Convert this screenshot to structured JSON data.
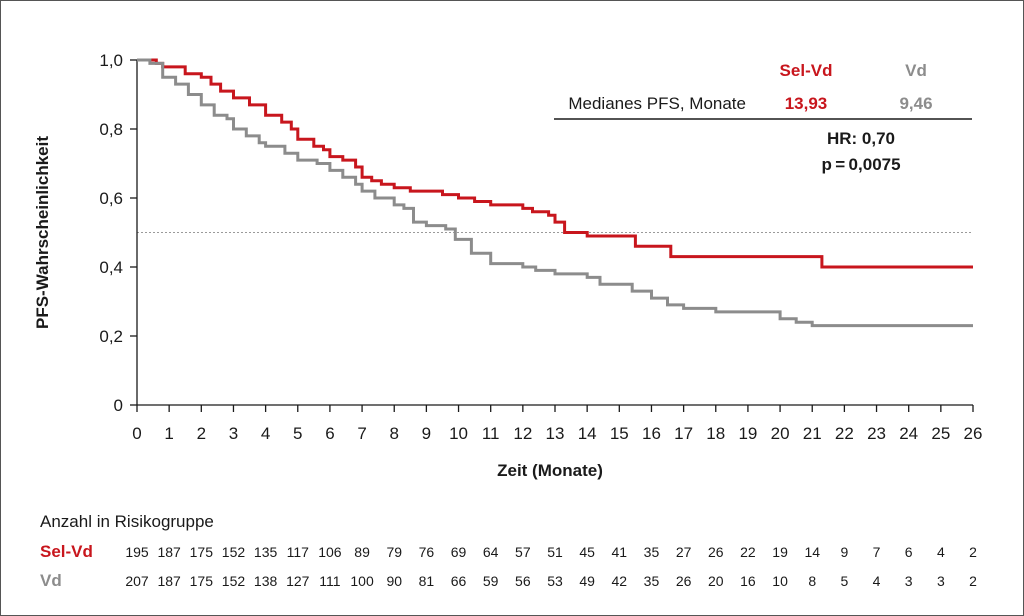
{
  "chart_data": {
    "type": "line",
    "title": "",
    "xlabel": "Zeit (Monate)",
    "ylabel": "PFS-Wahrscheinlichkeit",
    "xlim": [
      0,
      26
    ],
    "ylim": [
      0,
      1
    ],
    "x_ticks": [
      "0",
      "1",
      "2",
      "3",
      "4",
      "5",
      "6",
      "7",
      "8",
      "9",
      "10",
      "11",
      "12",
      "13",
      "14",
      "15",
      "16",
      "17",
      "18",
      "19",
      "20",
      "21",
      "22",
      "23",
      "24",
      "25",
      "26"
    ],
    "y_ticks": [
      {
        "value": 0,
        "label": "0"
      },
      {
        "value": 0.2,
        "label": "0,2"
      },
      {
        "value": 0.4,
        "label": "0,4"
      },
      {
        "value": 0.6,
        "label": "0,6"
      },
      {
        "value": 0.8,
        "label": "0,8"
      },
      {
        "value": 1.0,
        "label": "1,0"
      }
    ],
    "median_reference_line": 0.5,
    "series": [
      {
        "name": "Sel-Vd",
        "color": "#c8161d",
        "x": [
          0,
          0.6,
          0.8,
          1.5,
          2.0,
          2.3,
          2.6,
          3.0,
          3.5,
          4.0,
          4.5,
          4.8,
          5.0,
          5.5,
          5.8,
          6.0,
          6.4,
          6.8,
          7.0,
          7.3,
          7.6,
          8.0,
          8.5,
          9.0,
          9.5,
          10.0,
          10.5,
          11.0,
          12.0,
          12.3,
          12.8,
          13.0,
          13.3,
          13.8,
          14.0,
          14.5,
          15.0,
          15.5,
          16.0,
          16.6,
          17.0,
          19.0,
          21.0,
          21.3,
          23.0,
          26.0
        ],
        "y": [
          1.0,
          0.99,
          0.98,
          0.96,
          0.95,
          0.93,
          0.91,
          0.89,
          0.87,
          0.84,
          0.82,
          0.8,
          0.77,
          0.75,
          0.74,
          0.72,
          0.71,
          0.69,
          0.66,
          0.65,
          0.64,
          0.63,
          0.62,
          0.62,
          0.61,
          0.6,
          0.59,
          0.58,
          0.57,
          0.56,
          0.55,
          0.53,
          0.5,
          0.5,
          0.49,
          0.49,
          0.49,
          0.46,
          0.46,
          0.43,
          0.43,
          0.43,
          0.43,
          0.4,
          0.4,
          0.4
        ]
      },
      {
        "name": "Vd",
        "color": "#8c8c8c",
        "x": [
          0,
          0.4,
          0.8,
          1.2,
          1.6,
          2.0,
          2.4,
          2.8,
          3.0,
          3.4,
          3.8,
          4.0,
          4.6,
          5.0,
          5.6,
          6.0,
          6.4,
          6.8,
          7.0,
          7.4,
          8.0,
          8.3,
          8.6,
          9.0,
          9.6,
          9.9,
          10.4,
          11.0,
          12.0,
          12.4,
          13.0,
          13.6,
          14.0,
          14.4,
          15.0,
          15.4,
          16.0,
          16.5,
          17.0,
          17.6,
          18.0,
          19.0,
          20.0,
          20.5,
          21.0,
          23.0,
          26.0
        ],
        "y": [
          1.0,
          0.99,
          0.95,
          0.93,
          0.9,
          0.87,
          0.84,
          0.83,
          0.8,
          0.78,
          0.76,
          0.75,
          0.73,
          0.71,
          0.7,
          0.68,
          0.66,
          0.64,
          0.62,
          0.6,
          0.58,
          0.57,
          0.53,
          0.52,
          0.51,
          0.48,
          0.44,
          0.41,
          0.4,
          0.39,
          0.38,
          0.38,
          0.37,
          0.35,
          0.35,
          0.33,
          0.31,
          0.29,
          0.28,
          0.28,
          0.27,
          0.27,
          0.25,
          0.24,
          0.23,
          0.23,
          0.23
        ]
      }
    ]
  },
  "summary": {
    "col_sel": "Sel-Vd",
    "col_vd": "Vd",
    "row_label": "Medianes PFS, Monate",
    "sel_value": "13,93",
    "vd_value": "9,46",
    "hr": "HR: 0,70",
    "p": "p = 0,0075"
  },
  "risk_table": {
    "title": "Anzahl in Risikogruppe",
    "rows": [
      {
        "label": "Sel-Vd",
        "color": "#c8161d",
        "values": [
          "195",
          "187",
          "175",
          "152",
          "135",
          "117",
          "106",
          "89",
          "79",
          "76",
          "69",
          "64",
          "57",
          "51",
          "45",
          "41",
          "35",
          "27",
          "26",
          "22",
          "19",
          "14",
          "9",
          "7",
          "6",
          "4",
          "2"
        ]
      },
      {
        "label": "Vd",
        "color": "#8c8c8c",
        "values": [
          "207",
          "187",
          "175",
          "152",
          "138",
          "127",
          "111",
          "100",
          "90",
          "81",
          "66",
          "59",
          "56",
          "53",
          "49",
          "42",
          "35",
          "26",
          "20",
          "16",
          "10",
          "8",
          "5",
          "4",
          "3",
          "3",
          "2"
        ]
      }
    ]
  }
}
